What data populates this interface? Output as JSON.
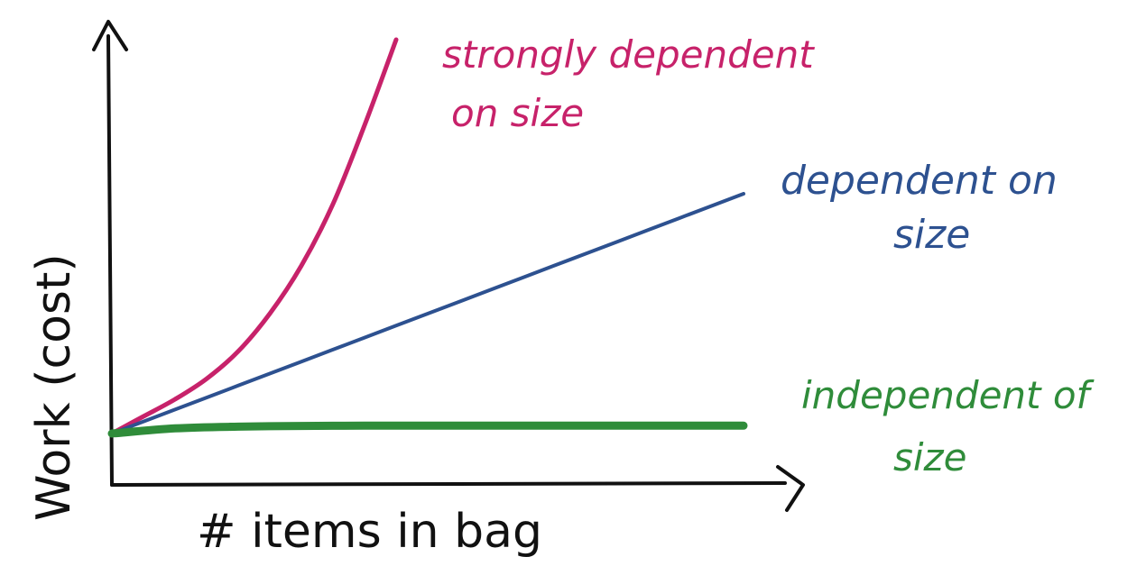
{
  "chart_data": {
    "type": "line",
    "title": "",
    "xlabel": "# items in bag",
    "ylabel": "Work (cost)",
    "grid": false,
    "x": [
      0,
      0.1,
      0.2,
      0.3,
      0.4,
      0.5,
      0.6,
      0.7,
      0.8,
      0.9,
      1.0
    ],
    "series": [
      {
        "name": "strongly dependent on size",
        "color": "#c7226a",
        "x": [
          0,
          0.05,
          0.1,
          0.15,
          0.2,
          0.25,
          0.3,
          0.35,
          0.4,
          0.45
        ],
        "values": [
          0.15,
          0.2,
          0.25,
          0.31,
          0.39,
          0.5,
          0.64,
          0.82,
          1.05,
          1.3
        ]
      },
      {
        "name": "dependent on size",
        "color": "#2d5190",
        "x": [
          0,
          0.1,
          0.2,
          0.3,
          0.4,
          0.5,
          0.6,
          0.7,
          0.8,
          0.9,
          1.0
        ],
        "values": [
          0.15,
          0.22,
          0.29,
          0.36,
          0.43,
          0.5,
          0.57,
          0.64,
          0.71,
          0.78,
          0.85
        ]
      },
      {
        "name": "independent of size",
        "color": "#2f8c3a",
        "x": [
          0,
          0.1,
          0.2,
          0.3,
          0.4,
          0.5,
          0.6,
          0.7,
          0.8,
          0.9,
          1.0
        ],
        "values": [
          0.15,
          0.165,
          0.17,
          0.172,
          0.173,
          0.173,
          0.173,
          0.173,
          0.173,
          0.173,
          0.173
        ]
      }
    ],
    "labels": {
      "strong_line1": "strongly dependent",
      "strong_line2": "on size",
      "dep_line1": "dependent on",
      "dep_line2": "size",
      "indep_line1": "independent of",
      "indep_line2": "size"
    },
    "colors": {
      "axis": "#111111",
      "strong": "#c7226a",
      "dependent": "#2d5190",
      "independent": "#2f8c3a"
    }
  }
}
